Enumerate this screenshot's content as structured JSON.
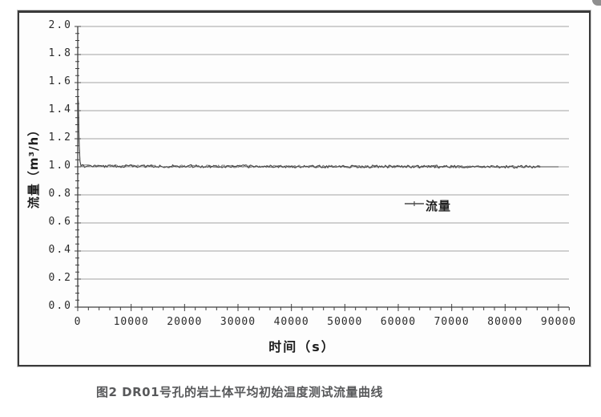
{
  "page": {
    "caption": "图2 DR01号孔的岩土体平均初始温度测试流量曲线"
  },
  "chart_data": {
    "type": "line",
    "title": "",
    "xlabel": "时间（s）",
    "ylabel": "流量（m³/h）",
    "legend": {
      "label": "流量",
      "position": "middle-right-inside"
    },
    "xlim": [
      0,
      90000
    ],
    "ylim": [
      0.0,
      2.0
    ],
    "x_ticks": [
      0,
      10000,
      20000,
      30000,
      40000,
      50000,
      60000,
      70000,
      80000,
      90000
    ],
    "y_ticks": [
      0.0,
      0.2,
      0.4,
      0.6,
      0.8,
      1.0,
      1.2,
      1.4,
      1.6,
      1.8,
      2.0
    ],
    "x_minor_step": 2000,
    "y_minor_step": 0.05,
    "grid": "horizontal-only",
    "series": [
      {
        "name": "流量",
        "points": [
          [
            0,
            1.51
          ],
          [
            120,
            1.46
          ],
          [
            260,
            1.18
          ],
          [
            420,
            1.04
          ],
          [
            620,
            1.005
          ],
          [
            86400,
            1.0
          ],
          [
            90000,
            1.0
          ]
        ],
        "noise_band": 0.01,
        "noise_until": 86400,
        "description": "流量从1.5 m³/h瞬间降至约1.0 m³/h并保持恒定至约86400 s"
      }
    ],
    "colors": {
      "line": "#4a4a4a",
      "grid": "#8c8c8c",
      "axis": "#3f3f3f",
      "tick_text": "#2b2b2b",
      "caption_text": "#58595b"
    }
  }
}
